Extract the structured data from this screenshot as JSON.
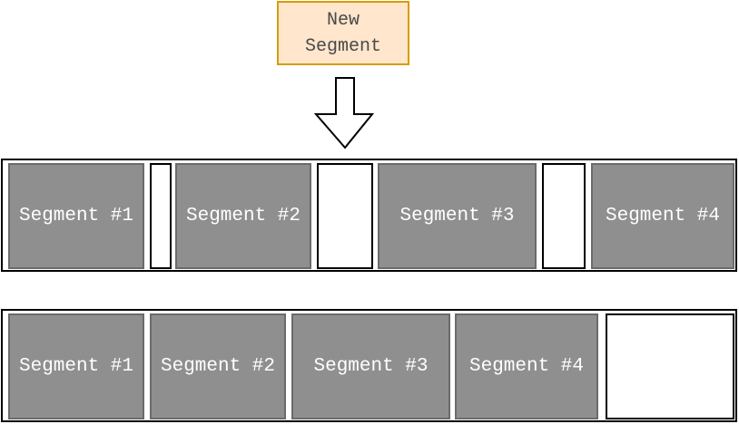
{
  "new_segment": {
    "label": "New\nSegment"
  },
  "top_strip": {
    "segments": [
      "Segment #1",
      "Segment #2",
      "Segment #3",
      "Segment #4"
    ]
  },
  "bottom_strip": {
    "segments": [
      "Segment #1",
      "Segment #2",
      "Segment #3",
      "Segment #4"
    ]
  },
  "colors": {
    "segment_fill": "#8f8f8f",
    "segment_border": "#6b6b6b",
    "new_segment_fill": "#ffe6cc",
    "new_segment_border": "#d79b00"
  }
}
